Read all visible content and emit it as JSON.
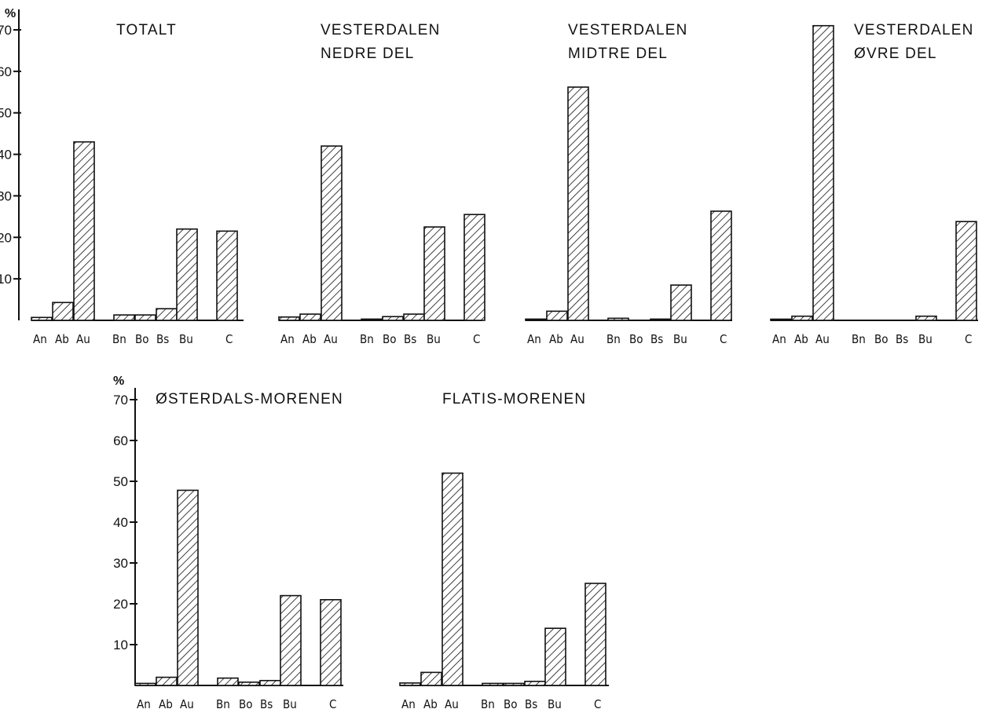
{
  "chart_data": {
    "type": "bar",
    "categories": [
      "An",
      "Ab",
      "Au",
      "Bn",
      "Bo",
      "Bs",
      "Bu",
      "C"
    ],
    "y_unit": "%",
    "y_ticks": [
      "10",
      "20",
      "30",
      "40",
      "50",
      "60",
      "70"
    ],
    "ylim": [
      0,
      70
    ],
    "grid": false,
    "panels": [
      {
        "title_lines": [
          "TOTALT"
        ],
        "values": [
          0.7,
          4.3,
          43.0,
          1.3,
          1.3,
          2.8,
          22.0,
          21.5
        ]
      },
      {
        "title_lines": [
          "VESTERDALEN",
          "NEDRE DEL"
        ],
        "values": [
          0.8,
          1.5,
          42.0,
          0.3,
          0.9,
          1.5,
          22.5,
          25.5
        ]
      },
      {
        "title_lines": [
          "VESTERDALEN",
          "MIDTRE DEL"
        ],
        "values": [
          0.3,
          2.2,
          56.2,
          0.5,
          0.0,
          0.3,
          8.5,
          26.3
        ]
      },
      {
        "title_lines": [
          "VESTERDALEN",
          "ØVRE DEL"
        ],
        "values": [
          0.1,
          1.0,
          71.0,
          0.0,
          0.0,
          0.0,
          1.0,
          23.8
        ]
      },
      {
        "title_lines": [
          "ØSTERDALS-MORENEN"
        ],
        "values": [
          0.5,
          2.0,
          47.8,
          1.8,
          0.8,
          1.2,
          22.0,
          21.0
        ]
      },
      {
        "title_lines": [
          "FLATIS-MORENEN"
        ],
        "values": [
          0.6,
          3.2,
          52.0,
          0.5,
          0.5,
          1.0,
          14.0,
          25.0
        ]
      }
    ]
  }
}
